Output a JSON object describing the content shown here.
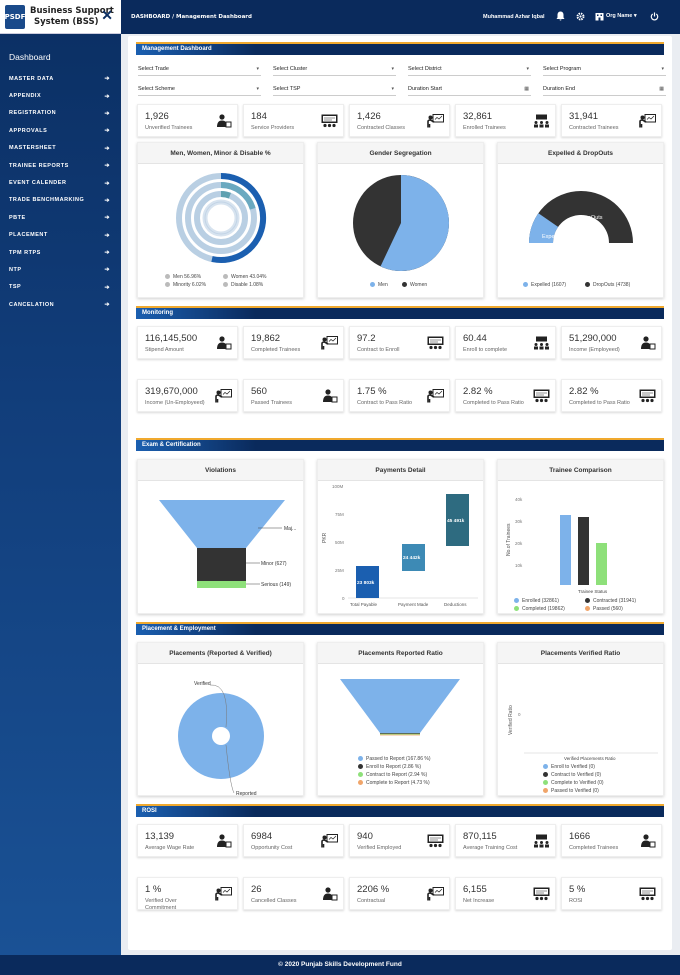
{
  "app": {
    "title_line1": "Business Support",
    "title_line2": "System (BSS)",
    "logo_text": "PSDF"
  },
  "sidebar": {
    "dashboard": "Dashboard",
    "items": [
      {
        "label": "MASTER DATA"
      },
      {
        "label": "APPENDIX"
      },
      {
        "label": "REGISTRATION"
      },
      {
        "label": "APPROVALS"
      },
      {
        "label": "MASTERSHEET"
      },
      {
        "label": "TRAINEE REPORTS"
      },
      {
        "label": "EVENT CALENDER"
      },
      {
        "label": "TRADE BENCHMARKING"
      },
      {
        "label": "PBTE"
      },
      {
        "label": "PLACEMENT"
      },
      {
        "label": "TPM RTPS"
      },
      {
        "label": "NTP"
      },
      {
        "label": "TSP"
      },
      {
        "label": "CANCELATION"
      }
    ]
  },
  "header": {
    "breadcrumb": "DASHBOARD / Management Dashboard",
    "user": "Muhammad Azhar Iqbal",
    "org": "Org Name"
  },
  "sections": {
    "management": "Management Dashboard",
    "monitoring": "Monitoring",
    "exam": "Exam & Certification",
    "placement": "Placement & Employment",
    "rosi": "ROSI"
  },
  "filters": [
    "Select Trade",
    "Select Cluster",
    "Select District",
    "Select Program",
    "Select Scheme",
    "Select TSP",
    "Duration Start",
    "Duration End"
  ],
  "management_cards": [
    {
      "value": "1,926",
      "label": "Unverified Trainees",
      "icon": "trainee-icon"
    },
    {
      "value": "184",
      "label": "Service Providers",
      "icon": "board-icon"
    },
    {
      "value": "1,426",
      "label": "Contracted Classes",
      "icon": "teacher-icon"
    },
    {
      "value": "32,861",
      "label": "Enrolled Trainees",
      "icon": "class-icon"
    },
    {
      "value": "31,941",
      "label": "Contracted Trainees",
      "icon": "teacher-icon"
    }
  ],
  "panels1": {
    "p1": {
      "title": "Men, Women, Minor & Disable %",
      "legend": [
        "Men 56.96%",
        "Women 43.04%",
        "Minority 6.02%",
        "Disable 1.08%"
      ]
    },
    "p2": {
      "title": "Gender Segregation",
      "legend": [
        "Men",
        "Women"
      ]
    },
    "p3": {
      "title": "Expelled & DropOuts",
      "legend": [
        "Expelled (1607)",
        "DropOuts (4738)"
      ],
      "label_expelled": "Expelled",
      "label_dropouts": "DropOuts"
    }
  },
  "monitoring_cards": [
    {
      "value": "116,145,500",
      "label": "Stipend Amount",
      "icon": "trainee-icon"
    },
    {
      "value": "19,862",
      "label": "Completed Trainees",
      "icon": "teacher-icon"
    },
    {
      "value": "97.2",
      "label": "Contract to Enroll",
      "icon": "board-icon"
    },
    {
      "value": "60.44",
      "label": "Enroll to complete",
      "icon": "class-icon"
    },
    {
      "value": "51,290,000",
      "label": "Income (Employeed)",
      "icon": "trainee-icon"
    },
    {
      "value": "319,670,000",
      "label": "Income (Un-Employeed)",
      "icon": "teacher-icon"
    },
    {
      "value": "560",
      "label": "Passed Trainees",
      "icon": "trainee-icon"
    },
    {
      "value": "1.75 %",
      "label": "Contract to Pass Ratio",
      "icon": "teacher-icon"
    },
    {
      "value": "2.82 %",
      "label": "Completed to Pass Ratio",
      "icon": "board-icon"
    },
    {
      "value": "2.82 %",
      "label": "Completed to Pass Ratio",
      "icon": "board-icon"
    }
  ],
  "panels2": {
    "p1": {
      "title": "Violations",
      "labels": [
        "Maj...",
        "Minor (627)",
        "Serious (149)"
      ]
    },
    "p2": {
      "title": "Payments Detail",
      "ylabel": "PKR",
      "yticks": [
        "100M",
        "75M",
        "50M",
        "25M",
        "0"
      ],
      "bars": [
        "23 803k",
        "24 442k",
        "45 491k"
      ],
      "categories": [
        "Total Payable",
        "Payment Made",
        "Deductions"
      ]
    },
    "p3": {
      "title": "Trainee Comparison",
      "ylabel": "No.of Trainees",
      "yticks": [
        "40k",
        "30k",
        "20k",
        "10k",
        "0"
      ],
      "xlabel": "Trainee Status",
      "legend": [
        "Enrolled (32861)",
        "Contracted (31941)",
        "Completed (19862)",
        "Passed (560)"
      ]
    }
  },
  "panels3": {
    "p1": {
      "title": "Placements (Reported & Verified)",
      "label_verified": "Verified",
      "label_reported": "Reported"
    },
    "p2": {
      "title": "Placements Reported Ratio",
      "legend": [
        "Passed to Report (167.86 %)",
        "Enroll to Report (2.86 %)",
        "Contract to Report (2.94 %)",
        "Complete to Report (4.73 %)"
      ]
    },
    "p3": {
      "title": "Placements Verified Ratio",
      "ylabel": "Verified Ratio",
      "ytick": "0",
      "xlabel": "Verified Placements Ratio",
      "legend": [
        "Enroll to Verified (0)",
        "Contract to Verified (0)",
        "Complete to Verified (0)",
        "Passed to Verified (0)"
      ]
    }
  },
  "rosi_cards": [
    {
      "value": "13,139",
      "label": "Average Wage Rate",
      "icon": "trainee-icon"
    },
    {
      "value": "6984",
      "label": "Opportunity Cost",
      "icon": "teacher-icon"
    },
    {
      "value": "940",
      "label": "Verified Employed",
      "icon": "board-icon"
    },
    {
      "value": "870,115",
      "label": "Average Training Cost",
      "icon": "class-icon"
    },
    {
      "value": "1666",
      "label": "Completed Trainees",
      "icon": "trainee-icon"
    },
    {
      "value": "1 %",
      "label": "Verified Over",
      "label2": "Commitment",
      "icon": "teacher-icon"
    },
    {
      "value": "26",
      "label": "Cancelled Classes",
      "icon": "trainee-icon"
    },
    {
      "value": "2206 %",
      "label": "Contractual",
      "icon": "teacher-icon"
    },
    {
      "value": "6,155",
      "label": "Net Increase",
      "icon": "board-icon"
    },
    {
      "value": "5 %",
      "label": "ROSI",
      "icon": "board-icon"
    }
  ],
  "colors": {
    "navy": "#0a2a5c",
    "accent": "#f0a92e",
    "blue": "#7db2ea",
    "dark": "#333333",
    "green": "#8ee07a",
    "orange": "#f0a56a",
    "teal": "#2e6b80"
  },
  "footer": "© 2020 Punjab Skills Development Fund"
}
